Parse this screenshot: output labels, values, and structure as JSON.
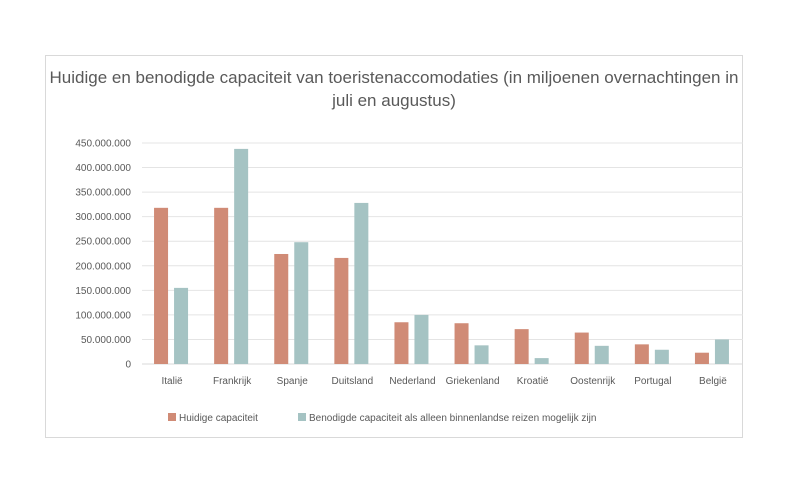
{
  "chart_data": {
    "type": "bar",
    "title": "Huidige en benodigde capaciteit van toeristenaccomodaties (in miljoenen overnachtingen in juli en augustus)",
    "categories": [
      "Italië",
      "Frankrijk",
      "Spanje",
      "Duitsland",
      "Nederland",
      "Griekenland",
      "Kroatië",
      "Oostenrijk",
      "Portugal",
      "België"
    ],
    "series": [
      {
        "name": "Huidige capaciteit",
        "color": "#d08b76",
        "values": [
          318000000,
          318000000,
          224000000,
          216000000,
          85000000,
          83000000,
          71000000,
          64000000,
          40000000,
          23000000
        ]
      },
      {
        "name": "Benodigde capaciteit als alleen binnenlandse reizen mogelijk zijn",
        "color": "#a5c3c3",
        "values": [
          155000000,
          438000000,
          248000000,
          328000000,
          100000000,
          38000000,
          12000000,
          37000000,
          29000000,
          50000000
        ]
      }
    ],
    "ylim": [
      0,
      450000000
    ],
    "yticks": [
      0,
      50000000,
      100000000,
      150000000,
      200000000,
      250000000,
      300000000,
      350000000,
      400000000,
      450000000
    ],
    "ytick_labels": [
      "0",
      "50.000.000",
      "100.000.000",
      "150.000.000",
      "200.000.000",
      "250.000.000",
      "300.000.000",
      "350.000.000",
      "400.000.000",
      "450.000.000"
    ],
    "grid": true,
    "legend_position": "bottom"
  }
}
